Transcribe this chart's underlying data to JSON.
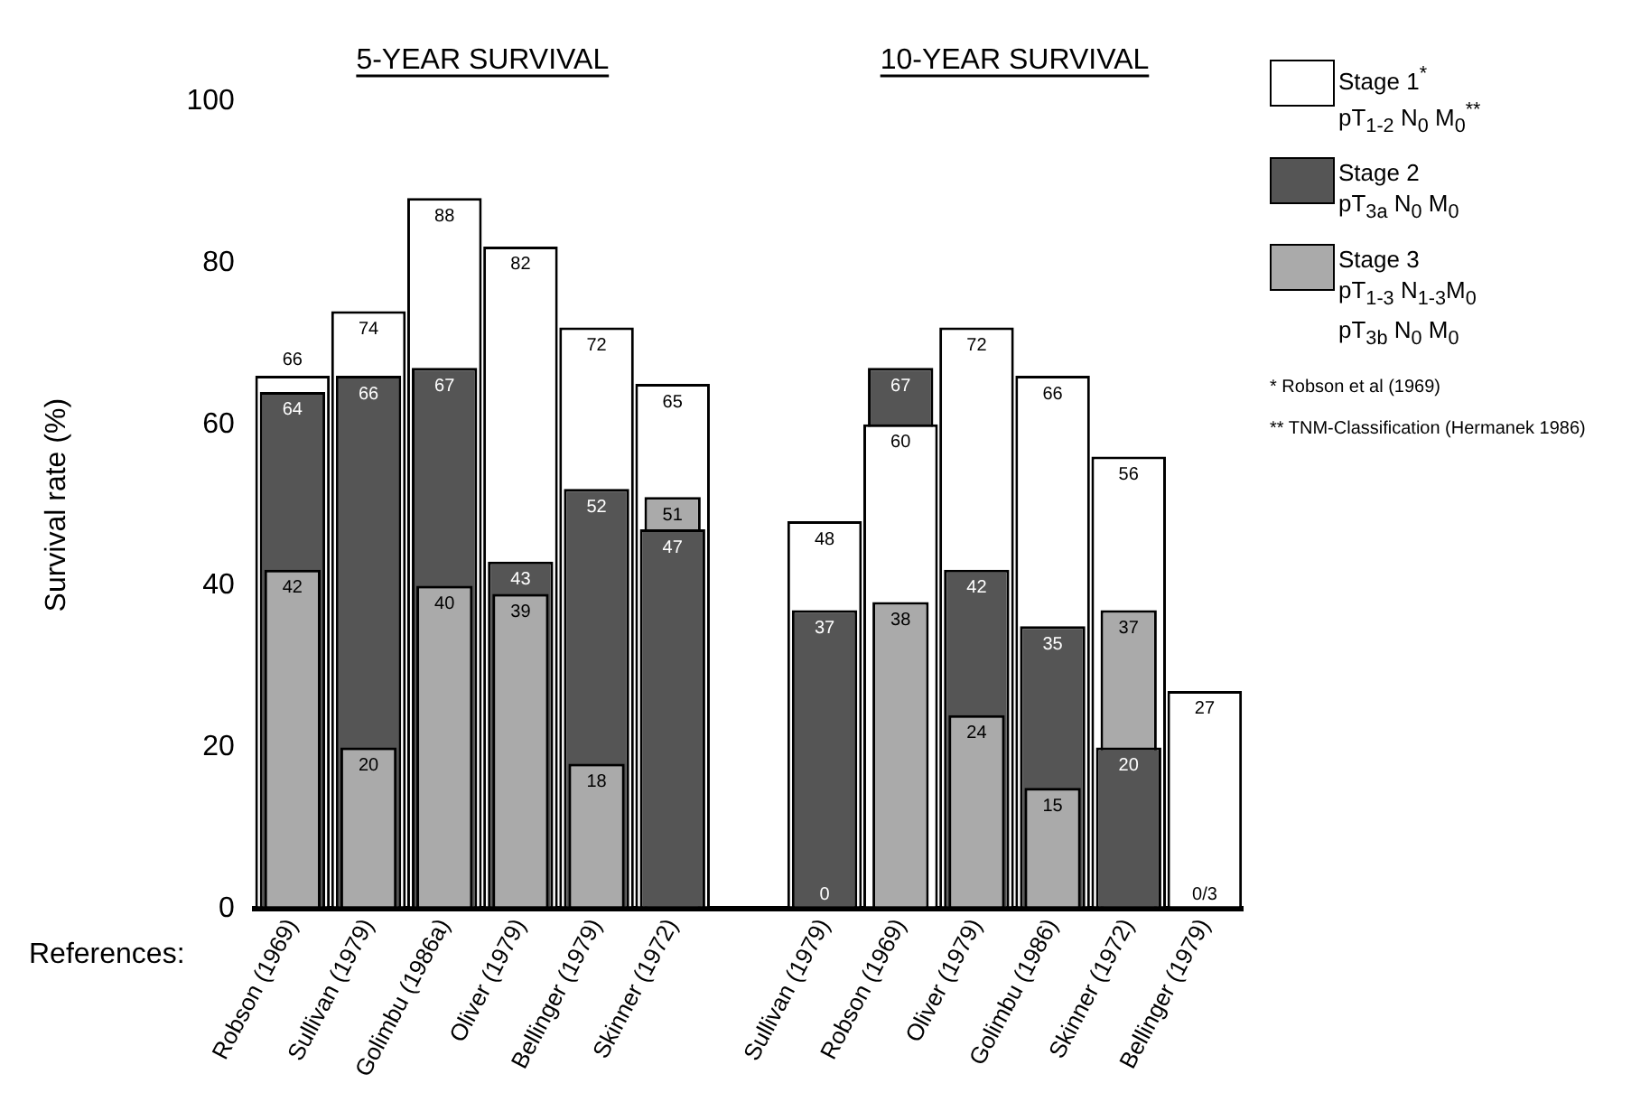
{
  "chart_data": {
    "type": "bar",
    "ylabel": "Survival rate (%)",
    "ylim": [
      0,
      100
    ],
    "yticks": [
      0,
      20,
      40,
      60,
      80,
      100
    ],
    "grid": false,
    "legend": "top right",
    "categories": [
      "Robson (1969)",
      "Sullivan (1979)",
      "Golimbu (1986a)",
      "Oliver (1979)",
      "Bellinger (1979)",
      "Skinner (1972)",
      null,
      "Sullivan (1979)",
      "Robson (1969)",
      "Oliver (1979)",
      "Golimbu (1986)",
      "Skinner (1972)",
      "Bellinger (1979)"
    ],
    "series": [
      {
        "name": "Stage 1$^{*}$\npT$_{1-2}$ N$_{0}$ M$_{0}$$^{**}$",
        "color": "#ffffff",
        "values": [
          66,
          74,
          88,
          82,
          72,
          65,
          null,
          48,
          60,
          72,
          66,
          56,
          27
        ],
        "value_labels": [
          "66",
          "74",
          "88",
          "82",
          "72",
          "65",
          null,
          "48",
          "60",
          "72",
          "66",
          "56",
          "27"
        ]
      },
      {
        "name": "Stage 2\npT$_{3a}$ N$_{0}$ M$_{0}$",
        "color": "#555555",
        "values": [
          64,
          66,
          67,
          43,
          52,
          47,
          null,
          37,
          67,
          42,
          35,
          20,
          null
        ],
        "value_labels": [
          "64",
          "66",
          "67",
          "43",
          "52",
          "47",
          null,
          "37",
          "67",
          "42",
          "35",
          "20",
          null
        ]
      },
      {
        "name": "Stage 3\npT$_{1-3}$ N$_{1-3}$M$_{0}$\npT$_{3b}$ N$_{0}$ M$_{0}$",
        "color": "#aaaaaa",
        "values": [
          42,
          20,
          40,
          39,
          18,
          51,
          null,
          0,
          38,
          24,
          15,
          37,
          0
        ],
        "value_labels": [
          "42",
          "20",
          "40",
          "39",
          "18",
          "51",
          null,
          "0",
          "38",
          "24",
          "15",
          "37",
          "0/3"
        ]
      }
    ],
    "annotations": [
      "5-YEAR SURVIVAL",
      "10-YEAR SURVIVAL",
      "References:",
      "* Robson et al (1969)",
      "** TNM-Classification (Hermanek 1986)"
    ]
  }
}
